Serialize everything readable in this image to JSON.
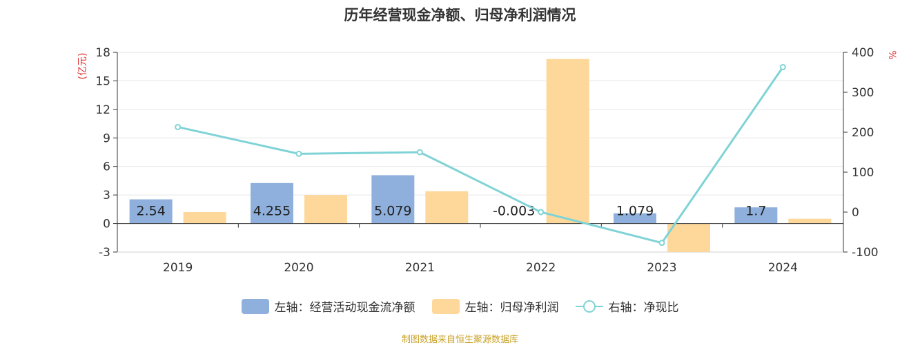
{
  "title": "历年经营现金净额、归母净利润情况",
  "source": "制图数据来自恒生聚源数据库",
  "chart_data": {
    "type": "bar",
    "categories": [
      "2019",
      "2020",
      "2021",
      "2022",
      "2023",
      "2024"
    ],
    "series": [
      {
        "name": "左轴：经营活动现金流净额",
        "axis": "left",
        "type": "bar",
        "color": "#8fb0dc",
        "values": [
          2.54,
          4.255,
          5.079,
          -0.003,
          1.079,
          1.7
        ],
        "labels": [
          "2.54",
          "4.255",
          "5.079",
          "-0.003",
          "1.079",
          "1.7"
        ]
      },
      {
        "name": "左轴：归母净利润",
        "axis": "left",
        "type": "bar",
        "color": "#fdd89a",
        "values": [
          1.2,
          3.0,
          3.4,
          17.3,
          -3.0,
          0.5
        ]
      },
      {
        "name": "右轴：净现比",
        "axis": "right",
        "type": "line",
        "color": "#7fd3d6",
        "values": [
          213,
          146,
          150,
          0,
          -77,
          363
        ]
      }
    ],
    "left_axis": {
      "label": "(亿元)",
      "ylim": [
        -3,
        18
      ],
      "ticks": [
        "-3",
        "0",
        "3",
        "6",
        "9",
        "12",
        "15",
        "18"
      ]
    },
    "right_axis": {
      "label": "%",
      "ylim": [
        -100,
        400
      ],
      "ticks": [
        "-100",
        "0",
        "100",
        "200",
        "300",
        "400"
      ]
    },
    "legend_position": "bottom"
  }
}
